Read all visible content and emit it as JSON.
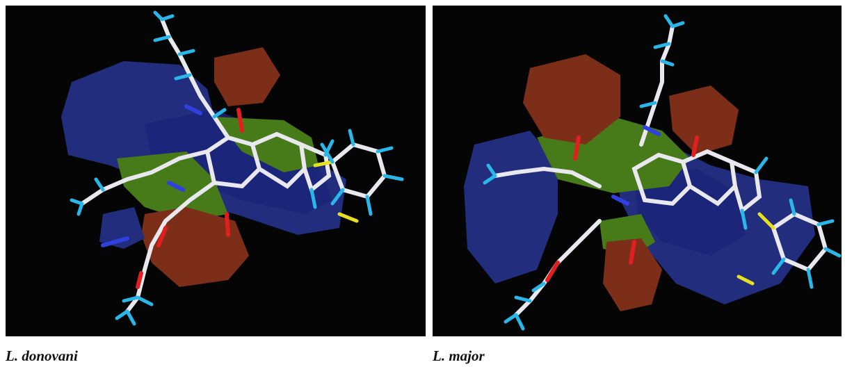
{
  "figure": {
    "panels": [
      {
        "caption": "L. donovani"
      },
      {
        "caption": "L. major"
      }
    ]
  },
  "colors": {
    "background": "#050505",
    "steric_favorable": "#7ddc2a",
    "steric_unfavorable": "#e0502a",
    "electro_positive": "#3a4ee0",
    "electro_negative": "#e0502a",
    "carbon": "#e8e8ee",
    "hydrogen": "#29b6e8",
    "oxygen": "#e02020",
    "nitrogen": "#3040e0",
    "sulfur": "#e6e020"
  }
}
